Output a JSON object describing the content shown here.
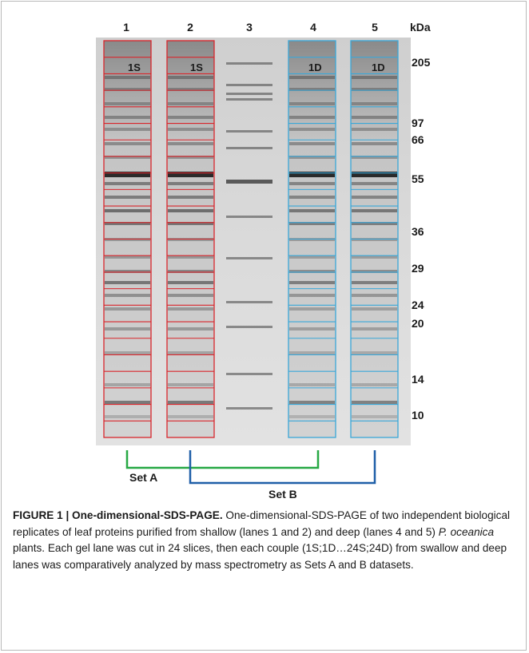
{
  "figure": {
    "lane_numbers": [
      "1",
      "2",
      "3",
      "4",
      "5"
    ],
    "unit_label": "kDa",
    "markers": [
      "205",
      "97",
      "66",
      "55",
      "36",
      "29",
      "24",
      "20",
      "14",
      "10"
    ],
    "slice_tags": [
      "1S",
      "1S",
      "1D",
      "1D"
    ],
    "slices_per_lane": 24,
    "set_a_label": "Set A",
    "set_b_label": "Set B",
    "colors": {
      "shallow_box": "#d9262c",
      "deep_box": "#3aa7d8",
      "set_a_bracket": "#27a844",
      "set_b_bracket": "#1f5fa8",
      "gel": "#d8d8d8"
    }
  },
  "caption": {
    "title": "FIGURE 1 | One-dimensional-SDS-PAGE.",
    "text_1": " One-dimensional-SDS-PAGE of two independent biological replicates of leaf proteins purified from shallow (lanes 1 and 2) and deep (lanes 4 and 5) ",
    "species": "P. oceanica",
    "text_2": " plants. Each gel lane was cut in 24 slices, then each couple (1S;1D…24S;24D) from swallow and deep lanes was comparatively analyzed by mass spectrometry as Sets A and B datasets."
  }
}
